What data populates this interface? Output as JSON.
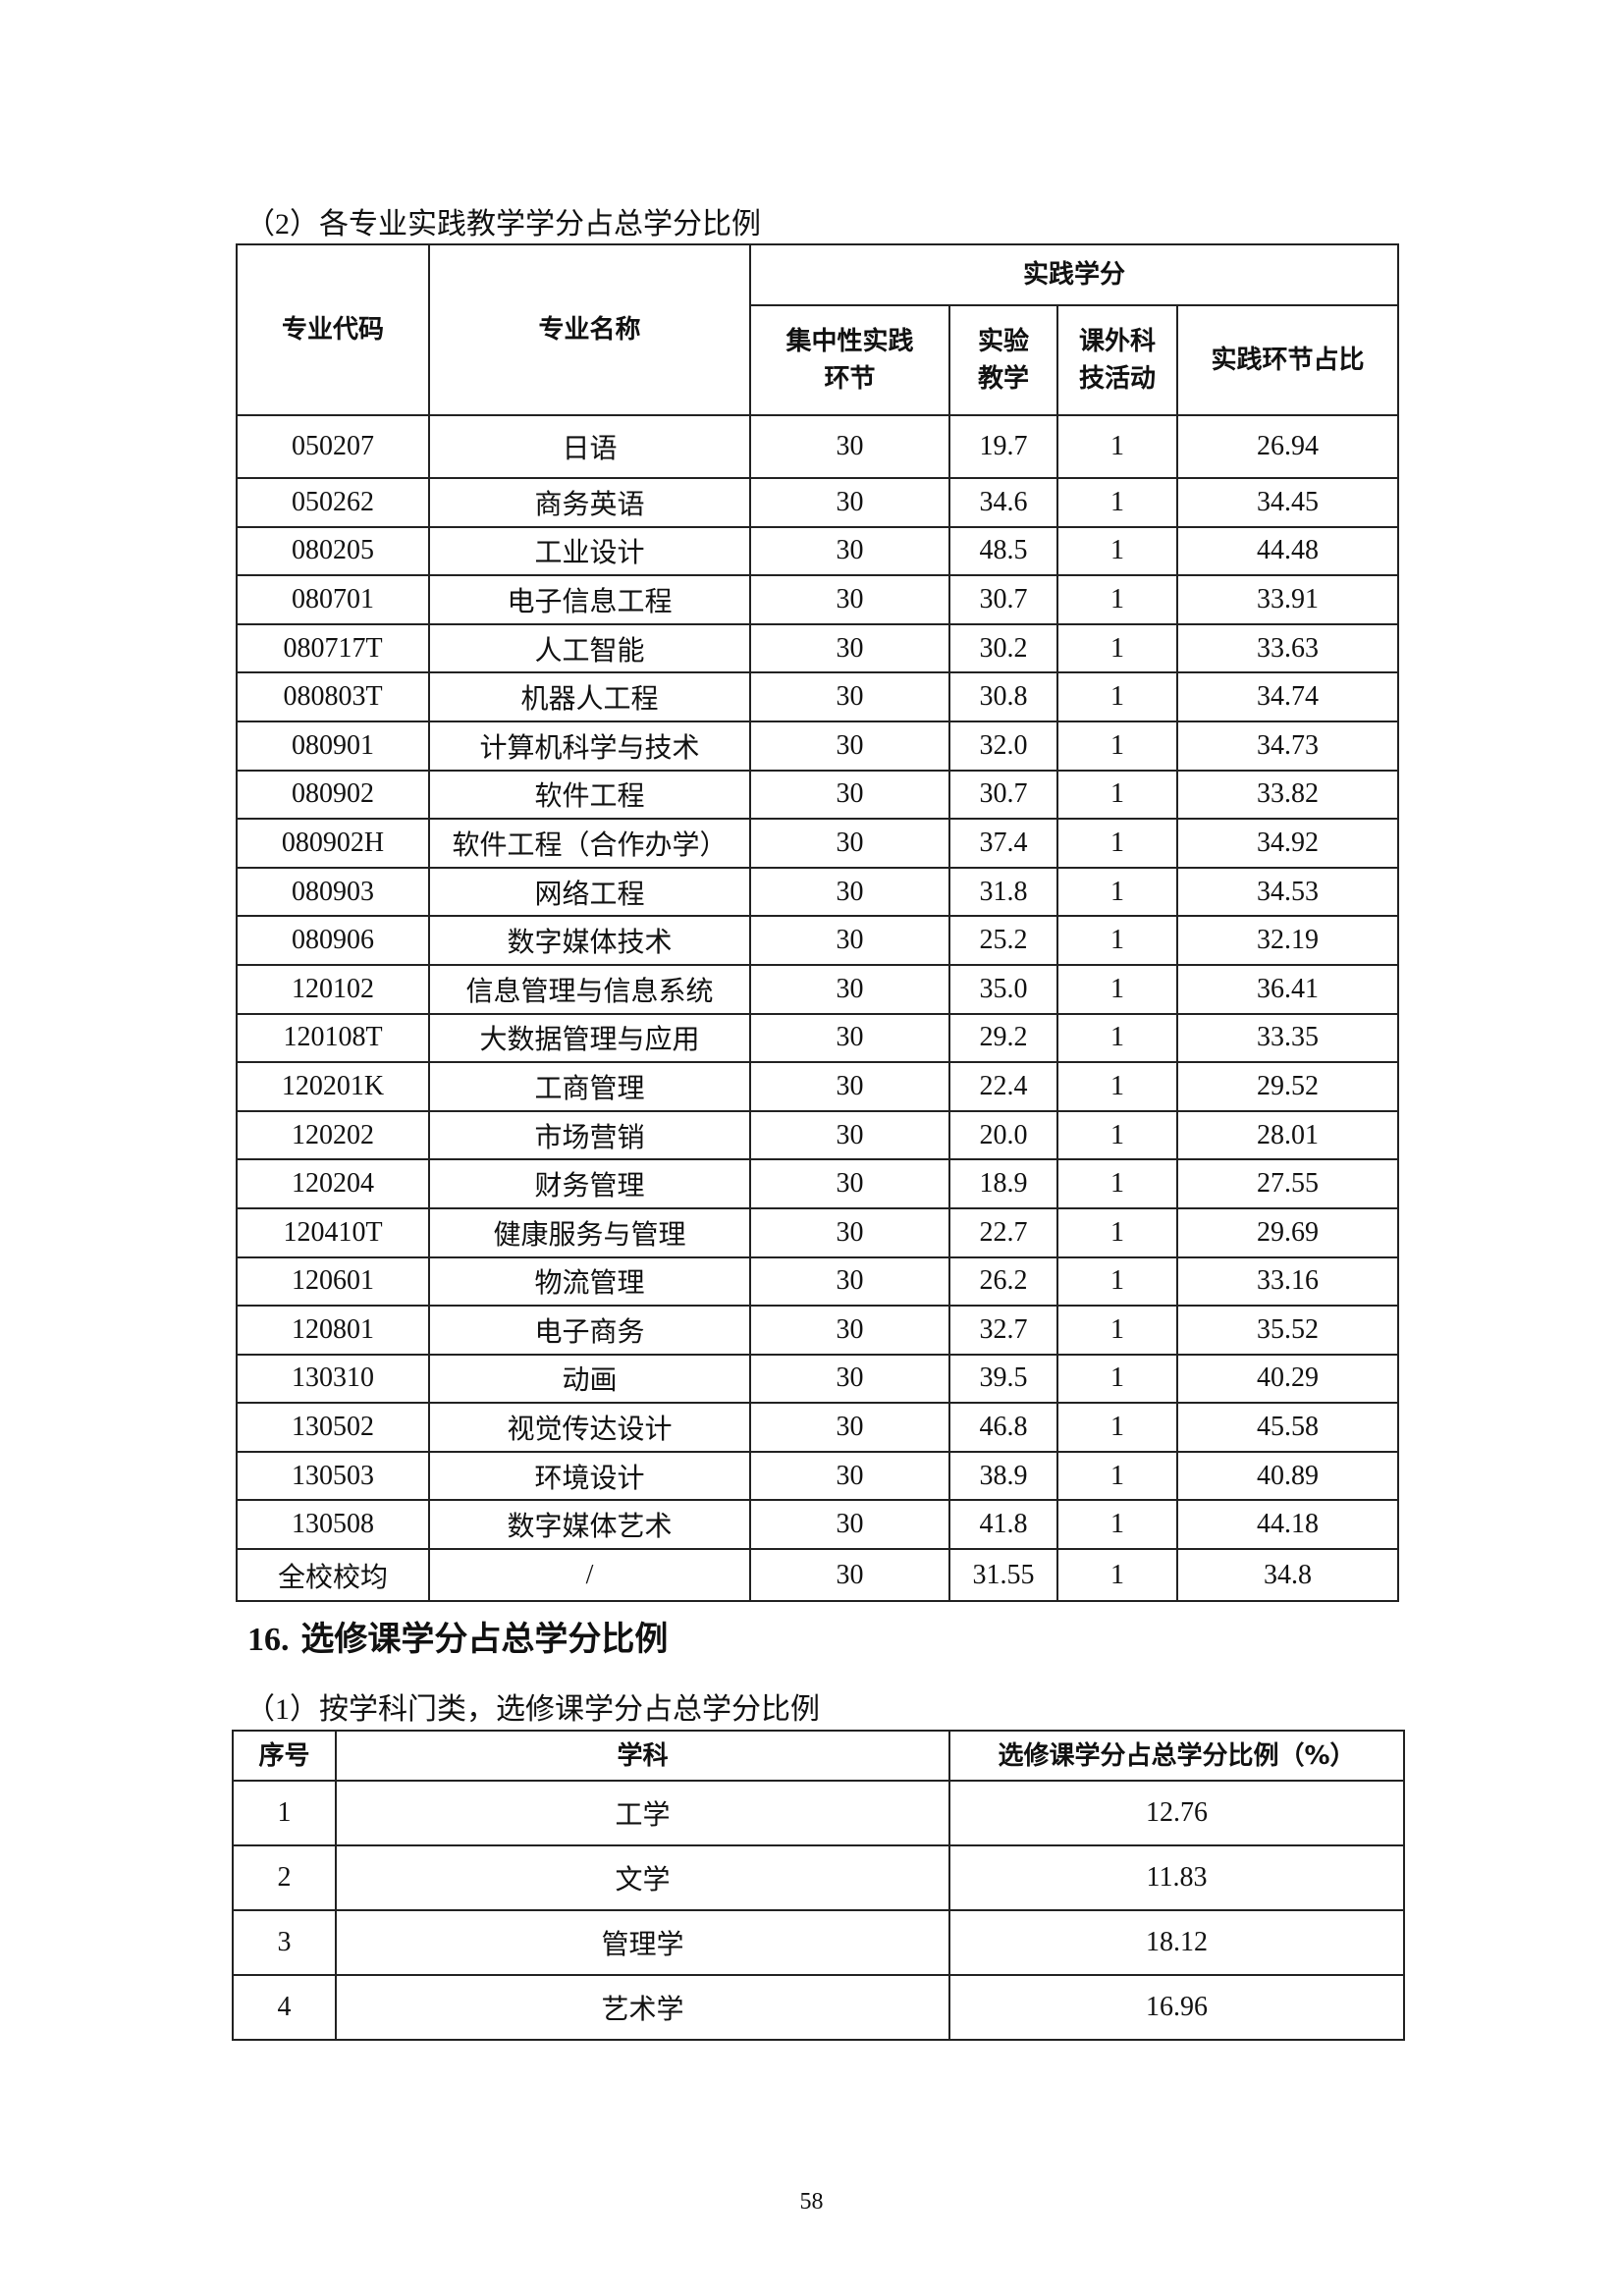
{
  "table1": {
    "caption": "（2）各专业实践教学学分占总学分比例",
    "headers": {
      "code": "专业代码",
      "name": "专业名称",
      "group": "实践学分",
      "concentrated": [
        "集中性实践",
        "环节"
      ],
      "experiment": [
        "实验",
        "教学"
      ],
      "extracurricular": [
        "课外科",
        "技活动"
      ],
      "ratio": "实践环节占比"
    },
    "rows": [
      [
        "050207",
        "日语",
        "30",
        "19.7",
        "1",
        "26.94"
      ],
      [
        "050262",
        "商务英语",
        "30",
        "34.6",
        "1",
        "34.45"
      ],
      [
        "080205",
        "工业设计",
        "30",
        "48.5",
        "1",
        "44.48"
      ],
      [
        "080701",
        "电子信息工程",
        "30",
        "30.7",
        "1",
        "33.91"
      ],
      [
        "080717T",
        "人工智能",
        "30",
        "30.2",
        "1",
        "33.63"
      ],
      [
        "080803T",
        "机器人工程",
        "30",
        "30.8",
        "1",
        "34.74"
      ],
      [
        "080901",
        "计算机科学与技术",
        "30",
        "32.0",
        "1",
        "34.73"
      ],
      [
        "080902",
        "软件工程",
        "30",
        "30.7",
        "1",
        "33.82"
      ],
      [
        "080902H",
        "软件工程（合作办学）",
        "30",
        "37.4",
        "1",
        "34.92"
      ],
      [
        "080903",
        "网络工程",
        "30",
        "31.8",
        "1",
        "34.53"
      ],
      [
        "080906",
        "数字媒体技术",
        "30",
        "25.2",
        "1",
        "32.19"
      ],
      [
        "120102",
        "信息管理与信息系统",
        "30",
        "35.0",
        "1",
        "36.41"
      ],
      [
        "120108T",
        "大数据管理与应用",
        "30",
        "29.2",
        "1",
        "33.35"
      ],
      [
        "120201K",
        "工商管理",
        "30",
        "22.4",
        "1",
        "29.52"
      ],
      [
        "120202",
        "市场营销",
        "30",
        "20.0",
        "1",
        "28.01"
      ],
      [
        "120204",
        "财务管理",
        "30",
        "18.9",
        "1",
        "27.55"
      ],
      [
        "120410T",
        "健康服务与管理",
        "30",
        "22.7",
        "1",
        "29.69"
      ],
      [
        "120601",
        "物流管理",
        "30",
        "26.2",
        "1",
        "33.16"
      ],
      [
        "120801",
        "电子商务",
        "30",
        "32.7",
        "1",
        "35.52"
      ],
      [
        "130310",
        "动画",
        "30",
        "39.5",
        "1",
        "40.29"
      ],
      [
        "130502",
        "视觉传达设计",
        "30",
        "46.8",
        "1",
        "45.58"
      ],
      [
        "130503",
        "环境设计",
        "30",
        "38.9",
        "1",
        "40.89"
      ],
      [
        "130508",
        "数字媒体艺术",
        "30",
        "41.8",
        "1",
        "44.18"
      ],
      [
        "全校校均",
        "/",
        "30",
        "31.55",
        "1",
        "34.8"
      ]
    ]
  },
  "section16": {
    "number": "16.",
    "title": "选修课学分占总学分比例"
  },
  "table2": {
    "caption": "（1）按学科门类，选修课学分占总学分比例",
    "headers": [
      "序号",
      "学科",
      "选修课学分占总学分比例（%）"
    ],
    "rows": [
      [
        "1",
        "工学",
        "12.76"
      ],
      [
        "2",
        "文学",
        "11.83"
      ],
      [
        "3",
        "管理学",
        "18.12"
      ],
      [
        "4",
        "艺术学",
        "16.96"
      ]
    ]
  },
  "page_number": "58"
}
